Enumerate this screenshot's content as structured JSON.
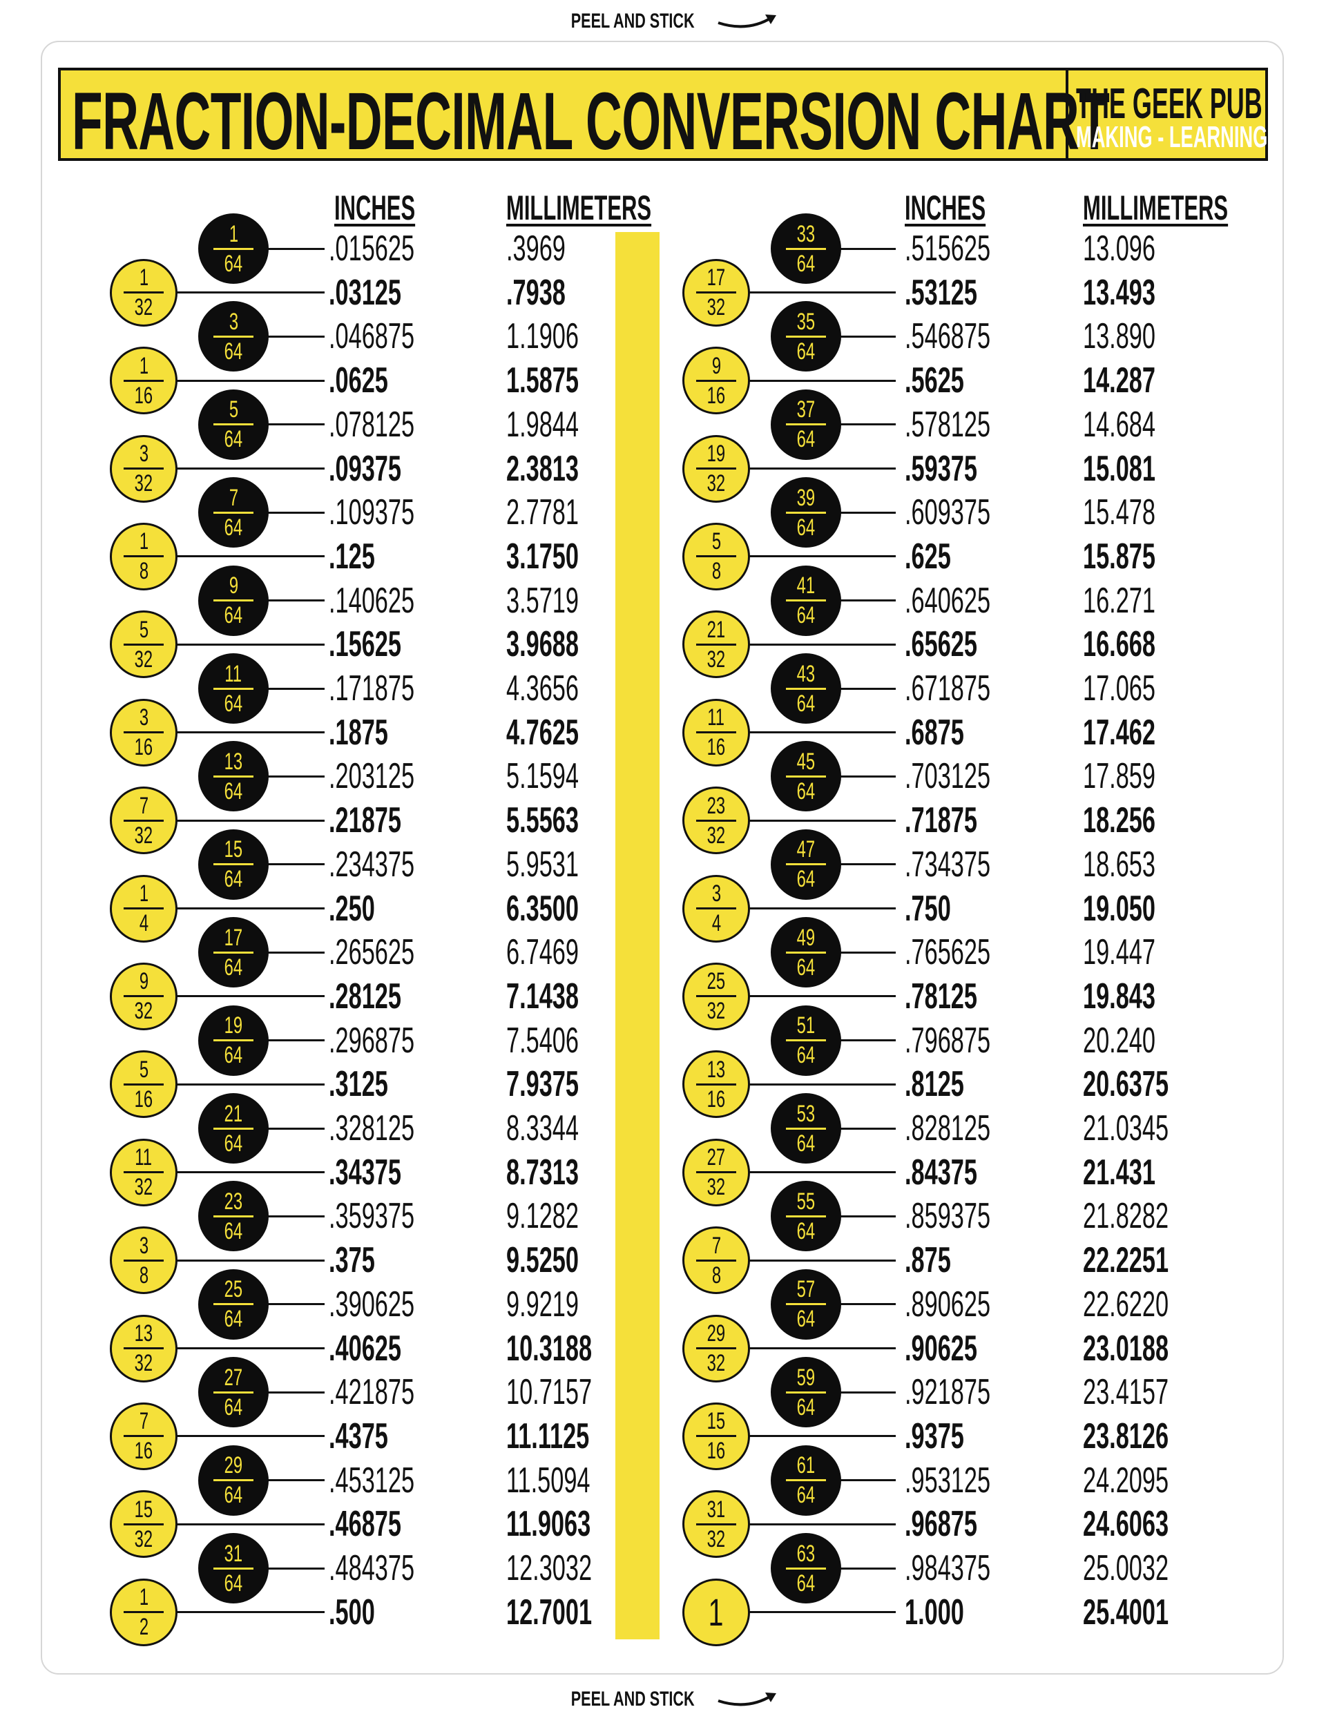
{
  "peel_label": "PEEL AND STICK",
  "title": "FRACTION-DECIMAL CONVERSION CHART",
  "brand": {
    "name": "THE GEEK PUB",
    "tagline": "MAKING - LEARNING"
  },
  "colors": {
    "accent": "#f5e03a",
    "dark": "#0d0d0d"
  },
  "headers": {
    "inches": "INCHES",
    "millimeters": "MILLIMETERS"
  },
  "left": [
    {
      "style": "black",
      "num": "1",
      "den": "64",
      "in": ".015625",
      "mm": ".3969"
    },
    {
      "style": "yellow",
      "num": "1",
      "den": "32",
      "in": ".03125",
      "mm": ".7938"
    },
    {
      "style": "black",
      "num": "3",
      "den": "64",
      "in": ".046875",
      "mm": "1.1906"
    },
    {
      "style": "yellow",
      "num": "1",
      "den": "16",
      "in": ".0625",
      "mm": "1.5875"
    },
    {
      "style": "black",
      "num": "5",
      "den": "64",
      "in": ".078125",
      "mm": "1.9844"
    },
    {
      "style": "yellow",
      "num": "3",
      "den": "32",
      "in": ".09375",
      "mm": "2.3813"
    },
    {
      "style": "black",
      "num": "7",
      "den": "64",
      "in": ".109375",
      "mm": "2.7781"
    },
    {
      "style": "yellow",
      "num": "1",
      "den": "8",
      "in": ".125",
      "mm": "3.1750"
    },
    {
      "style": "black",
      "num": "9",
      "den": "64",
      "in": ".140625",
      "mm": "3.5719"
    },
    {
      "style": "yellow",
      "num": "5",
      "den": "32",
      "in": ".15625",
      "mm": "3.9688"
    },
    {
      "style": "black",
      "num": "11",
      "den": "64",
      "in": ".171875",
      "mm": "4.3656"
    },
    {
      "style": "yellow",
      "num": "3",
      "den": "16",
      "in": ".1875",
      "mm": "4.7625"
    },
    {
      "style": "black",
      "num": "13",
      "den": "64",
      "in": ".203125",
      "mm": "5.1594"
    },
    {
      "style": "yellow",
      "num": "7",
      "den": "32",
      "in": ".21875",
      "mm": "5.5563"
    },
    {
      "style": "black",
      "num": "15",
      "den": "64",
      "in": ".234375",
      "mm": "5.9531"
    },
    {
      "style": "yellow",
      "num": "1",
      "den": "4",
      "in": ".250",
      "mm": "6.3500"
    },
    {
      "style": "black",
      "num": "17",
      "den": "64",
      "in": ".265625",
      "mm": "6.7469"
    },
    {
      "style": "yellow",
      "num": "9",
      "den": "32",
      "in": ".28125",
      "mm": "7.1438"
    },
    {
      "style": "black",
      "num": "19",
      "den": "64",
      "in": ".296875",
      "mm": "7.5406"
    },
    {
      "style": "yellow",
      "num": "5",
      "den": "16",
      "in": ".3125",
      "mm": "7.9375"
    },
    {
      "style": "black",
      "num": "21",
      "den": "64",
      "in": ".328125",
      "mm": "8.3344"
    },
    {
      "style": "yellow",
      "num": "11",
      "den": "32",
      "in": ".34375",
      "mm": "8.7313"
    },
    {
      "style": "black",
      "num": "23",
      "den": "64",
      "in": ".359375",
      "mm": "9.1282"
    },
    {
      "style": "yellow",
      "num": "3",
      "den": "8",
      "in": ".375",
      "mm": "9.5250"
    },
    {
      "style": "black",
      "num": "25",
      "den": "64",
      "in": ".390625",
      "mm": "9.9219"
    },
    {
      "style": "yellow",
      "num": "13",
      "den": "32",
      "in": ".40625",
      "mm": "10.3188"
    },
    {
      "style": "black",
      "num": "27",
      "den": "64",
      "in": ".421875",
      "mm": "10.7157"
    },
    {
      "style": "yellow",
      "num": "7",
      "den": "16",
      "in": ".4375",
      "mm": "11.1125"
    },
    {
      "style": "black",
      "num": "29",
      "den": "64",
      "in": ".453125",
      "mm": "11.5094"
    },
    {
      "style": "yellow",
      "num": "15",
      "den": "32",
      "in": ".46875",
      "mm": "11.9063"
    },
    {
      "style": "black",
      "num": "31",
      "den": "64",
      "in": ".484375",
      "mm": "12.3032"
    },
    {
      "style": "yellow",
      "num": "1",
      "den": "2",
      "in": ".500",
      "mm": "12.7001"
    }
  ],
  "right": [
    {
      "style": "black",
      "num": "33",
      "den": "64",
      "in": ".515625",
      "mm": "13.096"
    },
    {
      "style": "yellow",
      "num": "17",
      "den": "32",
      "in": ".53125",
      "mm": "13.493"
    },
    {
      "style": "black",
      "num": "35",
      "den": "64",
      "in": ".546875",
      "mm": "13.890"
    },
    {
      "style": "yellow",
      "num": "9",
      "den": "16",
      "in": ".5625",
      "mm": "14.287"
    },
    {
      "style": "black",
      "num": "37",
      "den": "64",
      "in": ".578125",
      "mm": "14.684"
    },
    {
      "style": "yellow",
      "num": "19",
      "den": "32",
      "in": ".59375",
      "mm": "15.081"
    },
    {
      "style": "black",
      "num": "39",
      "den": "64",
      "in": ".609375",
      "mm": "15.478"
    },
    {
      "style": "yellow",
      "num": "5",
      "den": "8",
      "in": ".625",
      "mm": "15.875"
    },
    {
      "style": "black",
      "num": "41",
      "den": "64",
      "in": ".640625",
      "mm": "16.271"
    },
    {
      "style": "yellow",
      "num": "21",
      "den": "32",
      "in": ".65625",
      "mm": "16.668"
    },
    {
      "style": "black",
      "num": "43",
      "den": "64",
      "in": ".671875",
      "mm": "17.065"
    },
    {
      "style": "yellow",
      "num": "11",
      "den": "16",
      "in": ".6875",
      "mm": "17.462"
    },
    {
      "style": "black",
      "num": "45",
      "den": "64",
      "in": ".703125",
      "mm": "17.859"
    },
    {
      "style": "yellow",
      "num": "23",
      "den": "32",
      "in": ".71875",
      "mm": "18.256"
    },
    {
      "style": "black",
      "num": "47",
      "den": "64",
      "in": ".734375",
      "mm": "18.653"
    },
    {
      "style": "yellow",
      "num": "3",
      "den": "4",
      "in": ".750",
      "mm": "19.050"
    },
    {
      "style": "black",
      "num": "49",
      "den": "64",
      "in": ".765625",
      "mm": "19.447"
    },
    {
      "style": "yellow",
      "num": "25",
      "den": "32",
      "in": ".78125",
      "mm": "19.843"
    },
    {
      "style": "black",
      "num": "51",
      "den": "64",
      "in": ".796875",
      "mm": "20.240"
    },
    {
      "style": "yellow",
      "num": "13",
      "den": "16",
      "in": ".8125",
      "mm": "20.6375"
    },
    {
      "style": "black",
      "num": "53",
      "den": "64",
      "in": ".828125",
      "mm": "21.0345"
    },
    {
      "style": "yellow",
      "num": "27",
      "den": "32",
      "in": ".84375",
      "mm": "21.431"
    },
    {
      "style": "black",
      "num": "55",
      "den": "64",
      "in": ".859375",
      "mm": "21.8282"
    },
    {
      "style": "yellow",
      "num": "7",
      "den": "8",
      "in": ".875",
      "mm": "22.2251"
    },
    {
      "style": "black",
      "num": "57",
      "den": "64",
      "in": ".890625",
      "mm": "22.6220"
    },
    {
      "style": "yellow",
      "num": "29",
      "den": "32",
      "in": ".90625",
      "mm": "23.0188"
    },
    {
      "style": "black",
      "num": "59",
      "den": "64",
      "in": ".921875",
      "mm": "23.4157"
    },
    {
      "style": "yellow",
      "num": "15",
      "den": "16",
      "in": ".9375",
      "mm": "23.8126"
    },
    {
      "style": "black",
      "num": "61",
      "den": "64",
      "in": ".953125",
      "mm": "24.2095"
    },
    {
      "style": "yellow",
      "num": "31",
      "den": "32",
      "in": ".96875",
      "mm": "24.6063"
    },
    {
      "style": "black",
      "num": "63",
      "den": "64",
      "in": ".984375",
      "mm": "25.0032"
    },
    {
      "style": "yellow",
      "whole": "1",
      "in": "1.000",
      "mm": "25.4001"
    }
  ]
}
